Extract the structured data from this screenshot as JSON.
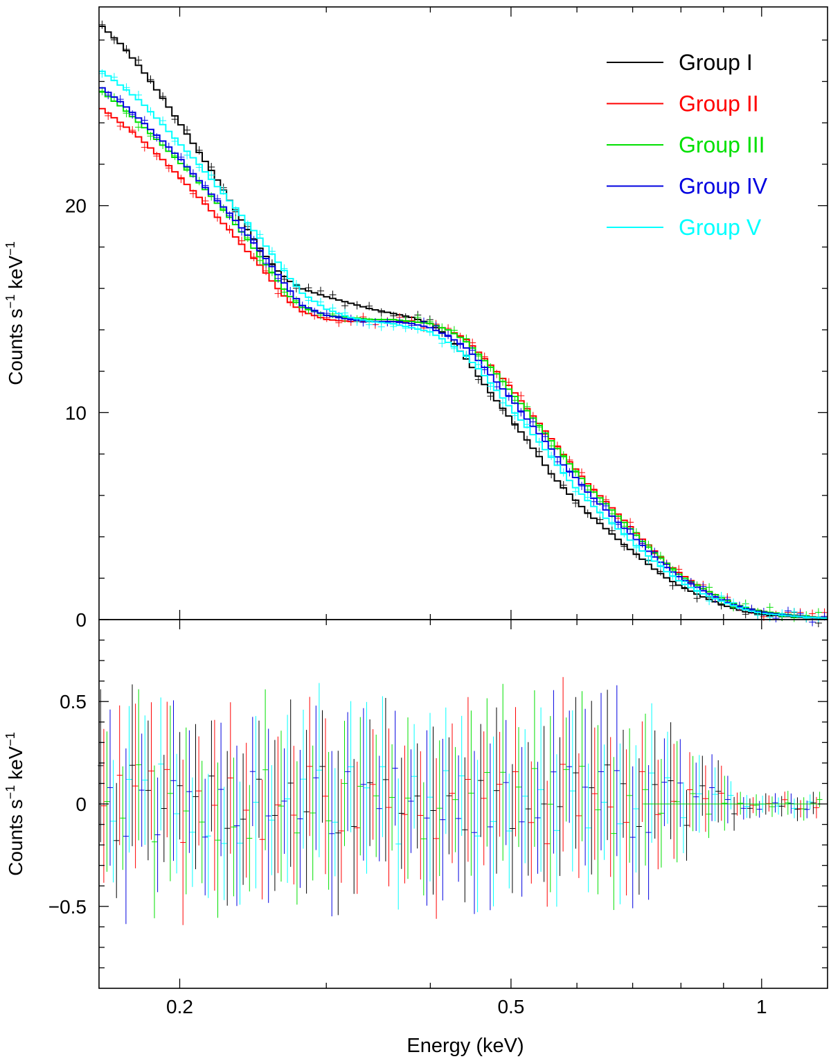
{
  "chart_data": [
    {
      "type": "line",
      "panel": "spectrum",
      "ylabel": "Counts s⁻¹ keV⁻¹",
      "ylabel_base": "Counts s",
      "ylabel_exp1": "−1",
      "ylabel_mid": " keV",
      "ylabel_exp2": "−1",
      "xscale": "log",
      "xlim": [
        0.16,
        1.2
      ],
      "ylim": [
        0,
        29.6
      ],
      "yticks": [
        {
          "v": 0,
          "label": "0"
        },
        {
          "v": 10,
          "label": "10"
        },
        {
          "v": 20,
          "label": "20"
        }
      ],
      "legend_position": "top-right",
      "series": [
        {
          "name": "Group I",
          "color": "#000000",
          "x": [
            0.16,
            0.17,
            0.18,
            0.19,
            0.2,
            0.21,
            0.22,
            0.23,
            0.24,
            0.25,
            0.26,
            0.27,
            0.28,
            0.3,
            0.32,
            0.34,
            0.36,
            0.38,
            0.4,
            0.42,
            0.44,
            0.46,
            0.48,
            0.5,
            0.52,
            0.54,
            0.56,
            0.58,
            0.6,
            0.62,
            0.65,
            0.68,
            0.71,
            0.74,
            0.77,
            0.8,
            0.85,
            0.9,
            0.95,
            1.0,
            1.1,
            1.2
          ],
          "y": [
            28.8,
            27.8,
            26.6,
            25.3,
            24.0,
            22.7,
            21.5,
            20.2,
            19.0,
            17.9,
            17.0,
            16.4,
            16.0,
            15.6,
            15.3,
            15.0,
            14.8,
            14.6,
            14.3,
            13.7,
            12.7,
            11.6,
            10.6,
            9.7,
            8.8,
            7.9,
            7.0,
            6.3,
            5.7,
            5.1,
            4.4,
            3.7,
            3.1,
            2.5,
            2.0,
            1.6,
            1.1,
            0.7,
            0.4,
            0.25,
            0.12,
            0.05
          ]
        },
        {
          "name": "Group II",
          "color": "#ff0000",
          "x": [
            0.16,
            0.17,
            0.18,
            0.19,
            0.2,
            0.21,
            0.22,
            0.23,
            0.24,
            0.25,
            0.26,
            0.27,
            0.28,
            0.3,
            0.32,
            0.34,
            0.36,
            0.38,
            0.4,
            0.42,
            0.44,
            0.46,
            0.48,
            0.5,
            0.52,
            0.54,
            0.56,
            0.58,
            0.6,
            0.62,
            0.65,
            0.68,
            0.71,
            0.74,
            0.77,
            0.8,
            0.85,
            0.9,
            0.95,
            1.0,
            1.1,
            1.2
          ],
          "y": [
            24.8,
            24.0,
            23.2,
            22.3,
            21.4,
            20.5,
            19.6,
            18.8,
            17.9,
            17.1,
            16.2,
            15.4,
            14.9,
            14.5,
            14.4,
            14.4,
            14.4,
            14.4,
            14.3,
            14.0,
            13.6,
            12.8,
            12.0,
            11.2,
            10.3,
            9.5,
            8.7,
            7.9,
            7.2,
            6.5,
            5.7,
            4.9,
            4.1,
            3.4,
            2.7,
            2.2,
            1.5,
            1.0,
            0.6,
            0.4,
            0.2,
            0.08
          ]
        },
        {
          "name": "Group III",
          "color": "#00e000",
          "x": [
            0.16,
            0.17,
            0.18,
            0.19,
            0.2,
            0.21,
            0.22,
            0.23,
            0.24,
            0.25,
            0.26,
            0.27,
            0.28,
            0.3,
            0.32,
            0.34,
            0.36,
            0.38,
            0.4,
            0.42,
            0.44,
            0.46,
            0.48,
            0.5,
            0.52,
            0.54,
            0.56,
            0.58,
            0.6,
            0.62,
            0.65,
            0.68,
            0.71,
            0.74,
            0.77,
            0.8,
            0.85,
            0.9,
            0.95,
            1.0,
            1.1,
            1.2
          ],
          "y": [
            25.6,
            24.8,
            23.9,
            23.0,
            22.1,
            21.2,
            20.3,
            19.4,
            18.5,
            17.5,
            16.6,
            15.7,
            15.1,
            14.7,
            14.6,
            14.5,
            14.5,
            14.4,
            14.3,
            14.0,
            13.5,
            12.7,
            11.9,
            11.0,
            10.2,
            9.4,
            8.6,
            7.8,
            7.1,
            6.4,
            5.6,
            4.8,
            4.0,
            3.3,
            2.7,
            2.1,
            1.5,
            1.0,
            0.6,
            0.4,
            0.2,
            0.08
          ]
        },
        {
          "name": "Group IV",
          "color": "#0000e0",
          "x": [
            0.16,
            0.17,
            0.18,
            0.19,
            0.2,
            0.21,
            0.22,
            0.23,
            0.24,
            0.25,
            0.26,
            0.27,
            0.28,
            0.3,
            0.32,
            0.34,
            0.36,
            0.38,
            0.4,
            0.42,
            0.44,
            0.46,
            0.48,
            0.5,
            0.52,
            0.54,
            0.56,
            0.58,
            0.6,
            0.62,
            0.65,
            0.68,
            0.71,
            0.74,
            0.77,
            0.8,
            0.85,
            0.9,
            0.95,
            1.0,
            1.1,
            1.2
          ],
          "y": [
            25.8,
            25.0,
            24.1,
            23.2,
            22.3,
            21.3,
            20.4,
            19.6,
            18.7,
            17.8,
            16.9,
            16.0,
            15.2,
            14.7,
            14.5,
            14.4,
            14.4,
            14.3,
            14.1,
            13.7,
            13.2,
            12.4,
            11.5,
            10.7,
            9.8,
            9.0,
            8.2,
            7.4,
            6.8,
            6.1,
            5.3,
            4.5,
            3.8,
            3.1,
            2.5,
            2.0,
            1.4,
            0.9,
            0.55,
            0.35,
            0.17,
            0.07
          ]
        },
        {
          "name": "Group V",
          "color": "#00ffff",
          "x": [
            0.16,
            0.17,
            0.18,
            0.19,
            0.2,
            0.21,
            0.22,
            0.23,
            0.24,
            0.25,
            0.26,
            0.27,
            0.28,
            0.3,
            0.32,
            0.34,
            0.36,
            0.38,
            0.4,
            0.42,
            0.44,
            0.46,
            0.48,
            0.5,
            0.52,
            0.54,
            0.56,
            0.58,
            0.6,
            0.62,
            0.65,
            0.68,
            0.71,
            0.74,
            0.77,
            0.8,
            0.85,
            0.9,
            0.95,
            1.0,
            1.1,
            1.2
          ],
          "y": [
            26.6,
            25.8,
            25.0,
            24.0,
            23.0,
            22.1,
            21.1,
            20.2,
            19.3,
            18.4,
            17.5,
            16.6,
            15.8,
            15.0,
            14.6,
            14.4,
            14.3,
            14.1,
            13.9,
            13.4,
            12.8,
            12.0,
            11.1,
            10.2,
            9.4,
            8.6,
            7.8,
            7.0,
            6.3,
            5.7,
            4.9,
            4.2,
            3.5,
            2.9,
            2.3,
            1.8,
            1.25,
            0.85,
            0.5,
            0.3,
            0.15,
            0.06
          ]
        }
      ]
    },
    {
      "type": "scatter",
      "panel": "residuals",
      "xlabel": "Energy (keV)",
      "ylabel": "Counts s⁻¹ keV⁻¹",
      "ylabel_base": "Counts s",
      "ylabel_exp1": "−1",
      "ylabel_mid": " keV",
      "ylabel_exp2": "−1",
      "xscale": "log",
      "xlim": [
        0.16,
        1.2
      ],
      "ylim": [
        -0.9,
        0.9
      ],
      "xticks": [
        {
          "v": 0.2,
          "label": "0.2"
        },
        {
          "v": 0.5,
          "label": "0.5"
        },
        {
          "v": 1,
          "label": "1"
        }
      ],
      "yticks": [
        {
          "v": -0.5,
          "label": "−0.5"
        },
        {
          "v": 0,
          "label": "0"
        },
        {
          "v": 0.5,
          "label": "0.5"
        }
      ],
      "note": "Residual error bars scattered around zero for all five groups; amplitude about ±0.4 below 0.7 keV, shrinking to about ±0.05 near 1 keV."
    }
  ]
}
